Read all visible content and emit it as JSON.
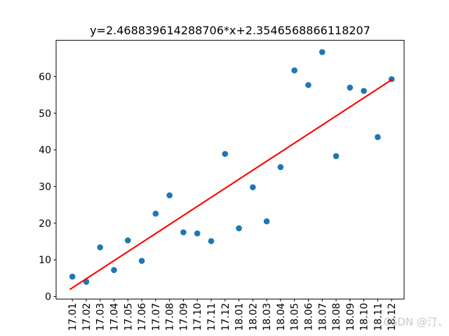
{
  "watermark": {
    "text": "CSDN @汀、",
    "color": "#c9c9c9"
  },
  "chart_data": {
    "type": "scatter",
    "title": "y=2.468839614288706*x+2.3546568866118207",
    "xlabel": "",
    "ylabel": "",
    "categories": [
      "17.01",
      "17.02",
      "17.03",
      "17.04",
      "17.05",
      "17.06",
      "17.07",
      "17.08",
      "17.09",
      "17.10",
      "17.11",
      "17.12",
      "18.01",
      "18.02",
      "18.03",
      "18.04",
      "18.05",
      "18.06",
      "18.07",
      "18.08",
      "18.09",
      "18.10",
      "18.11",
      "18.12"
    ],
    "values": [
      5.4,
      4.0,
      13.4,
      7.2,
      15.3,
      9.7,
      22.6,
      27.6,
      17.5,
      17.2,
      15.1,
      38.9,
      18.6,
      29.8,
      20.5,
      35.3,
      61.7,
      57.7,
      66.7,
      38.3,
      57.0,
      56.1,
      43.5,
      59.3
    ],
    "fit_line": {
      "slope": 2.468839614288706,
      "intercept": 2.3546568866118207,
      "t_start": -0.15,
      "t_end": 23,
      "color": "#ff0000",
      "width": 2.1
    },
    "marker": {
      "color": "#1f77b4",
      "radius": 4.3
    },
    "yticks": [
      0,
      10,
      20,
      30,
      40,
      50,
      60
    ],
    "ylim": [
      -0.71,
      69.91
    ],
    "xlim": [
      -1.17,
      23.9
    ],
    "grid": false,
    "legend": "none",
    "axes_color": "#000000"
  }
}
